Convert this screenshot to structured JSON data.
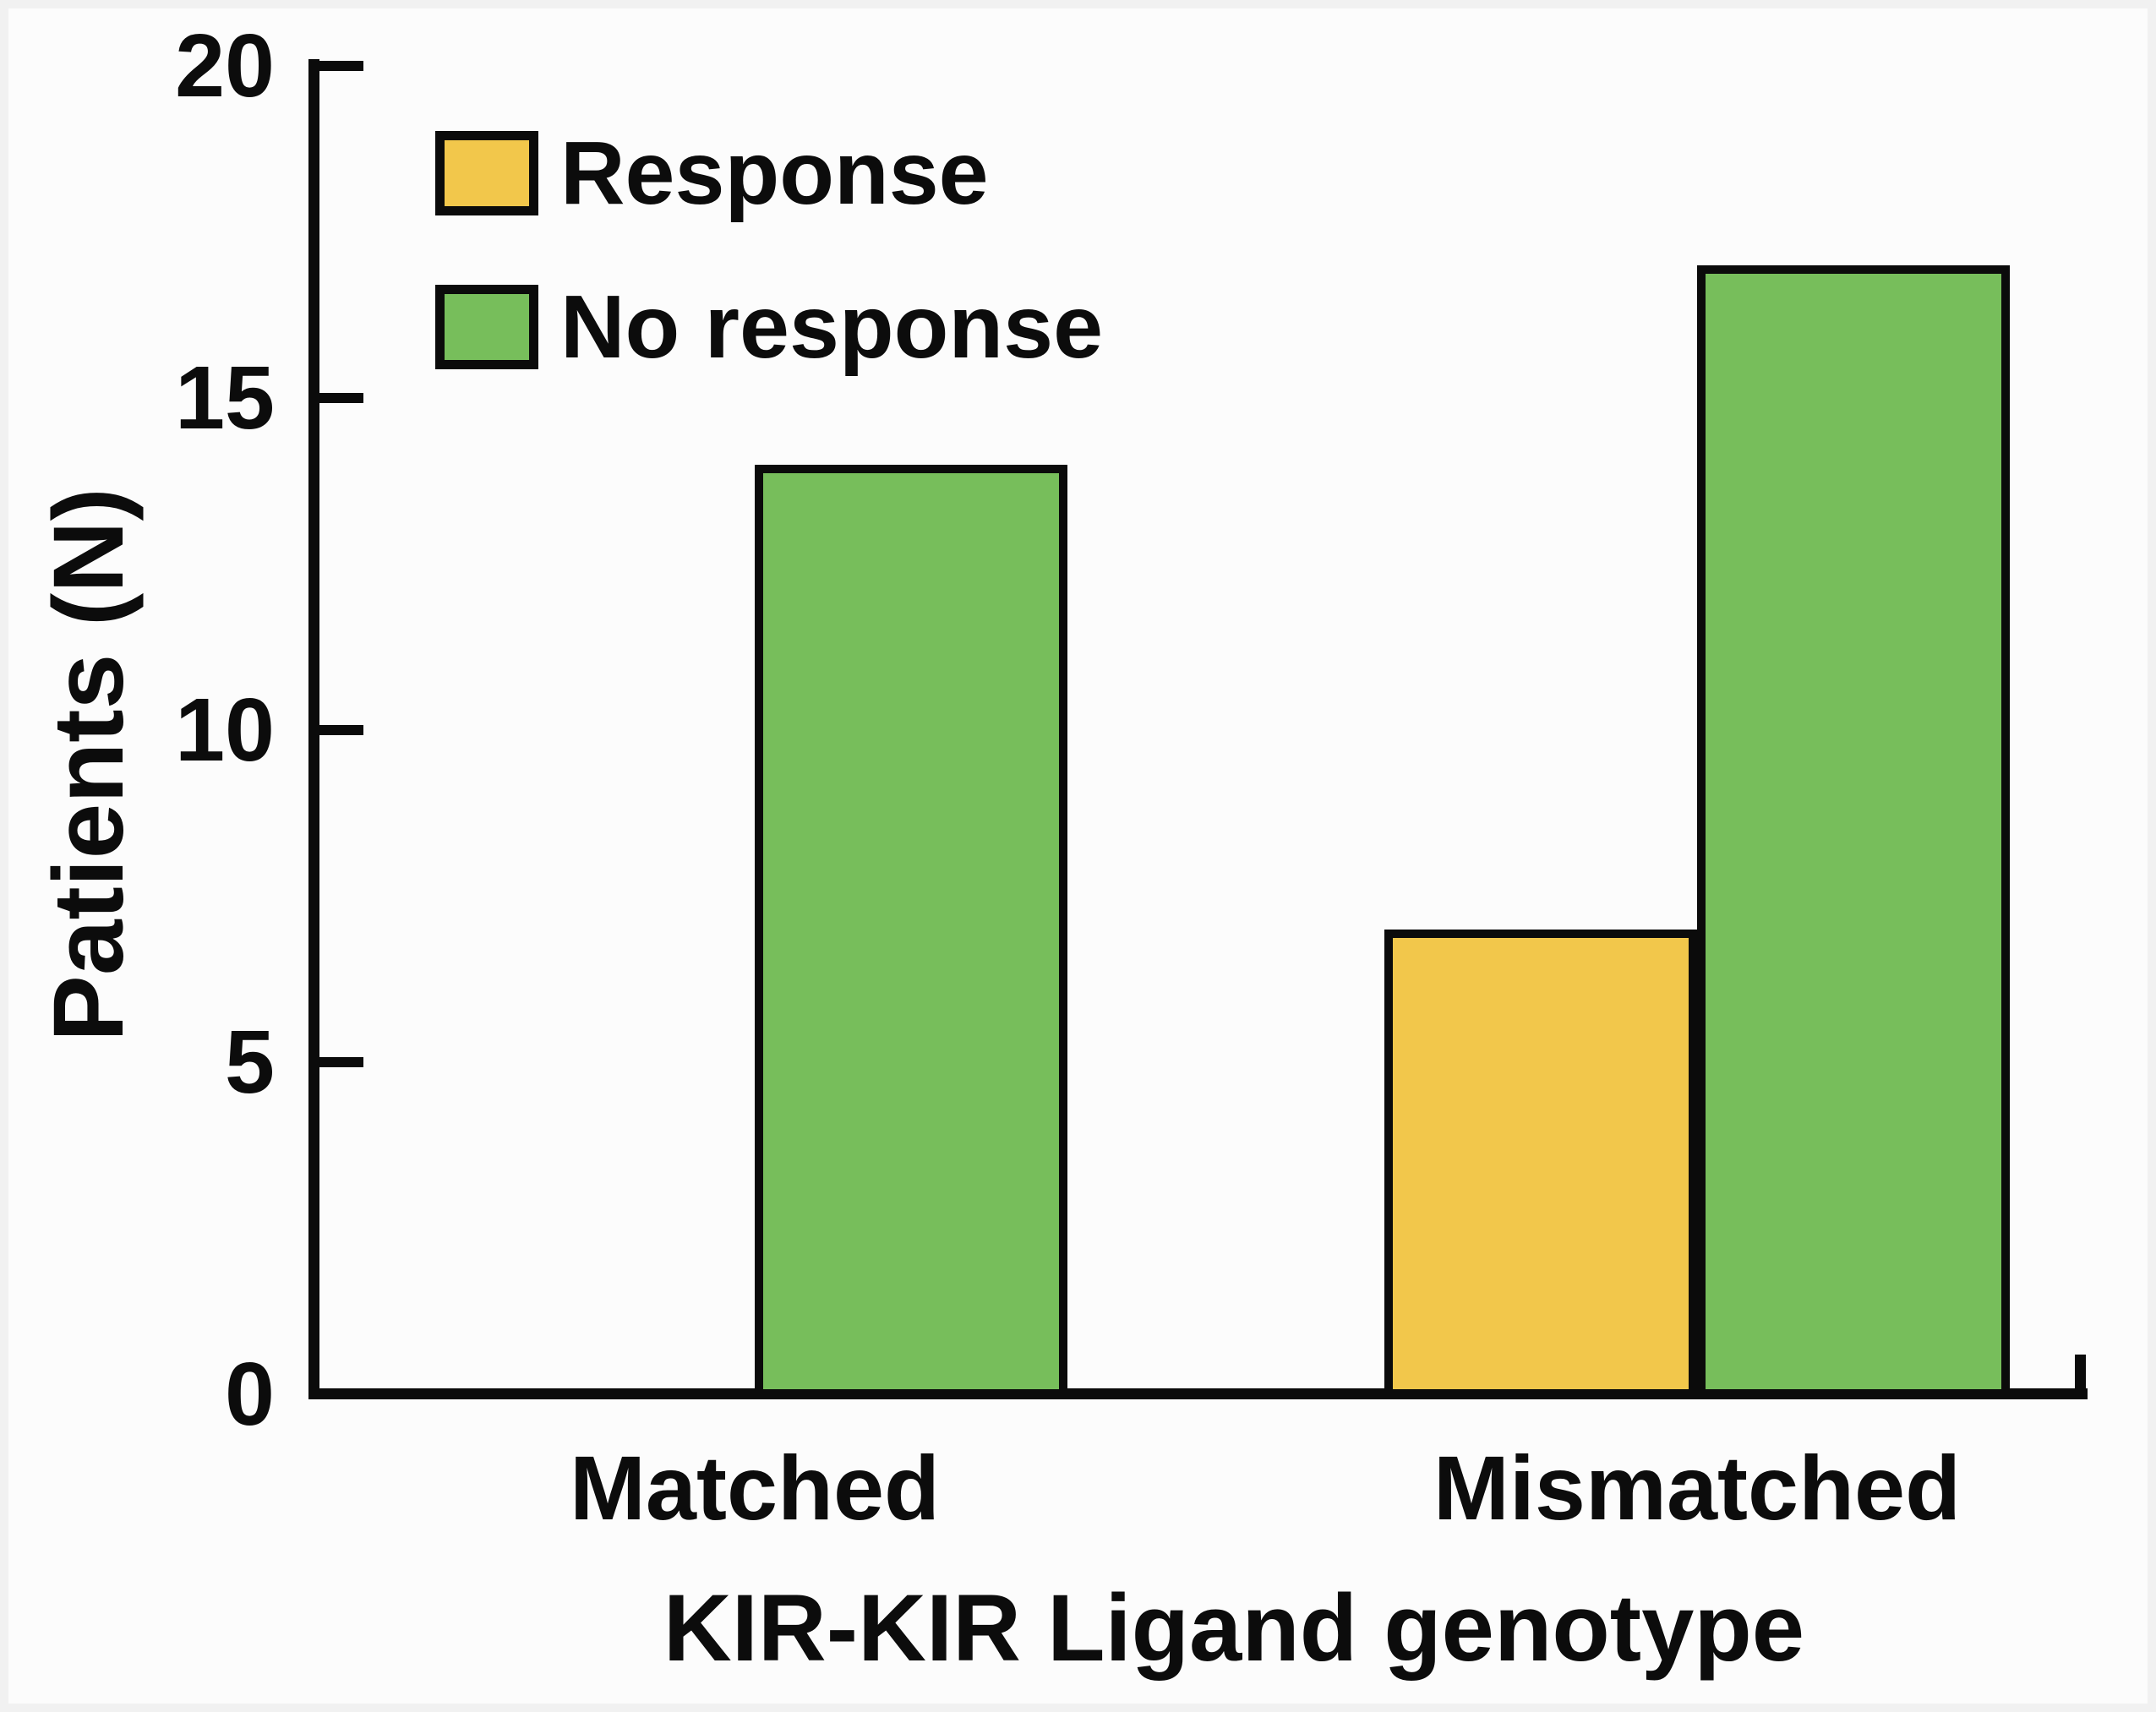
{
  "figure": {
    "background": "#fcfcfc",
    "frame_color": "#f1f1f1",
    "axis_color": "#0b0b0b",
    "text_color": "#0c0c0c"
  },
  "chart_data": {
    "type": "bar",
    "title": "",
    "xlabel": "KIR-KIR Ligand genotype",
    "ylabel": "Patients (N)",
    "categories": [
      "Matched",
      "Mismatched"
    ],
    "series": [
      {
        "name": "Response",
        "color": "#f2c74b",
        "values": [
          0,
          7
        ]
      },
      {
        "name": "No response",
        "color": "#77be5b",
        "values": [
          14,
          17
        ]
      }
    ],
    "ylim": [
      0,
      20
    ],
    "yticks": [
      0,
      5,
      10,
      15,
      20
    ],
    "grid": false,
    "legend_position": "upper-left",
    "bar_border_color": "#0b0b0b"
  }
}
